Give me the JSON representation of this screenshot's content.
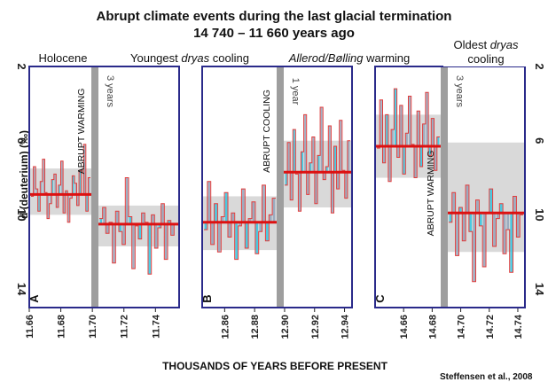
{
  "chart_data": {
    "type": "line",
    "title": "Abrupt climate events during the last glacial termination",
    "subtitle": "14 740 – 11 660 years ago",
    "xlabel": "THOUSANDS OF YEARS BEFORE PRESENT",
    "ylabel": "d (deuterium) (‰)",
    "credit": "Steffensen et al., 2008",
    "ylim": [
      2,
      15
    ],
    "y_inverted": true,
    "y_ticks": [
      "2",
      "6",
      "10",
      "14"
    ],
    "period_labels": [
      {
        "text": "Holocene"
      },
      {
        "text": "Youngest dryas cooling",
        "plain": "Youngest ",
        "italic": "dryas",
        "rest": " cooling"
      },
      {
        "text": "Allerod/Bølling warming",
        "plain": "",
        "italic": "Allerod/Bølling",
        "rest": " warming"
      },
      {
        "text": "Oldest dryas cooling",
        "line1": "Oldest ",
        "italic": "dryas",
        "line2": "cooling"
      }
    ],
    "panels": [
      {
        "id": "A",
        "xlim": [
          11.66,
          11.755
        ],
        "x_ticks": [
          "11.66",
          "11.68",
          "11.70",
          "11.72",
          "11.74"
        ],
        "x_tick_values": [
          11.66,
          11.68,
          11.7,
          11.72,
          11.74
        ],
        "transition": 11.702,
        "duration_label": "3 years",
        "event_label": "ABRUPT WARMING",
        "before_mean": 8.9,
        "after_mean": 10.5,
        "before_band": [
          7.5,
          10.0
        ],
        "after_band": [
          9.5,
          11.7
        ],
        "before_series": [
          9.0,
          7.4,
          8.6,
          9.8,
          8.2,
          7.0,
          8.8,
          10.2,
          9.4,
          8.1,
          7.8,
          9.6,
          8.4,
          7.1,
          9.9,
          8.7,
          10.4,
          9.1,
          7.9,
          8.3,
          9.5,
          7.6,
          8.9,
          6.2,
          9.8,
          8.0
        ],
        "after_series": [
          10.2,
          9.6,
          11.0,
          10.4,
          12.6,
          9.8,
          10.9,
          11.6,
          8.0,
          10.1,
          12.9,
          10.6,
          11.3,
          9.9,
          10.4,
          13.2,
          10.0,
          11.8,
          10.7,
          9.4,
          12.4,
          10.3,
          11.1,
          10.5
        ]
      },
      {
        "id": "B",
        "xlim": [
          12.845,
          12.945
        ],
        "x_ticks": [
          "12.86",
          "12.88",
          "12.90",
          "12.92",
          "12.94"
        ],
        "x_tick_values": [
          12.86,
          12.88,
          12.9,
          12.92,
          12.94
        ],
        "transition": 12.896,
        "duration_label": "1 year",
        "event_label": "ABRUPT COOLING",
        "before_mean": 10.4,
        "after_mean": 7.7,
        "before_band": [
          9.0,
          11.9
        ],
        "after_band": [
          6.0,
          9.6
        ],
        "before_series": [
          10.8,
          8.2,
          11.6,
          9.4,
          12.0,
          10.1,
          8.8,
          11.2,
          9.9,
          12.4,
          10.6,
          8.6,
          11.8,
          10.2,
          9.3,
          12.1,
          10.9,
          8.4,
          11.4,
          10.0,
          9.1
        ],
        "after_series": [
          8.4,
          6.1,
          9.2,
          5.4,
          7.8,
          9.8,
          6.6,
          4.6,
          8.9,
          7.2,
          5.8,
          9.4,
          6.8,
          4.2,
          8.1,
          7.4,
          5.2,
          9.9,
          6.3,
          8.6,
          4.9,
          7.6,
          9.1,
          6.0
        ]
      },
      {
        "id": "C",
        "xlim": [
          14.64,
          14.745
        ],
        "x_ticks": [
          "14.66",
          "14.68",
          "14.70",
          "14.72",
          "14.74"
        ],
        "x_tick_values": [
          14.66,
          14.68,
          14.7,
          14.72,
          14.74
        ],
        "transition": 14.692,
        "duration_label": "3 years",
        "event_label": "ABRUPT WARMING",
        "before_mean": 6.3,
        "after_mean": 9.9,
        "before_band": [
          4.6,
          8.0
        ],
        "after_band": [
          6.1,
          12.0
        ],
        "before_series": [
          6.4,
          3.8,
          7.2,
          4.6,
          8.2,
          5.4,
          3.2,
          6.9,
          4.1,
          7.8,
          5.6,
          3.6,
          6.2,
          8.0,
          4.4,
          7.4,
          5.1,
          3.4,
          6.8,
          4.8,
          7.6,
          5.8
        ],
        "after_series": [
          10.4,
          8.8,
          12.2,
          9.6,
          11.4,
          8.4,
          10.9,
          13.6,
          9.2,
          10.6,
          12.8,
          9.9,
          8.6,
          11.7,
          10.2,
          9.4,
          12.1,
          10.8,
          13.1,
          9.0,
          11.2,
          10.0
        ]
      }
    ]
  }
}
